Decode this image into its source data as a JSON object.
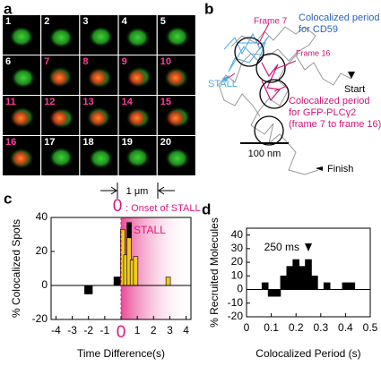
{
  "panel_a": {
    "label": "a",
    "scale_label": "1 μm",
    "frames": [
      {
        "label": "1",
        "color": "#ffffff"
      },
      {
        "label": "2",
        "color": "#ffffff"
      },
      {
        "label": "3",
        "color": "#ffffff"
      },
      {
        "label": "4",
        "color": "#ffffff"
      },
      {
        "label": "5",
        "color": "#ffffff"
      },
      {
        "label": "6",
        "color": "#ffffff"
      },
      {
        "label": "7",
        "color": "#ff3c9a"
      },
      {
        "label": "8",
        "color": "#ff3c9a"
      },
      {
        "label": "9",
        "color": "#ff3c9a"
      },
      {
        "label": "10",
        "color": "#ff3c9a"
      },
      {
        "label": "11",
        "color": "#ff3c9a"
      },
      {
        "label": "12",
        "color": "#ff3c9a"
      },
      {
        "label": "13",
        "color": "#ff3c9a"
      },
      {
        "label": "14",
        "color": "#ff3c9a"
      },
      {
        "label": "15",
        "color": "#ff3c9a"
      },
      {
        "label": "16",
        "color": "#ff3c9a"
      },
      {
        "label": "17",
        "color": "#ffffff"
      },
      {
        "label": "18",
        "color": "#ffffff"
      },
      {
        "label": "19",
        "color": "#ffffff"
      },
      {
        "label": "20",
        "color": "#ffffff"
      }
    ]
  },
  "panel_b": {
    "label": "b",
    "frame_7": "Frame 7",
    "frame_16": "Frame 16",
    "cd59_note": [
      "Colocalized period",
      "for CD59"
    ],
    "stall": "STALL",
    "start": "Start",
    "plc_note": [
      "Colocalized period",
      "for GFP-PLCγ2",
      "(frame 7 to frame 16)"
    ],
    "scale_label": "100 nm",
    "finish": "Finish"
  },
  "chart_data": [
    {
      "type": "bar",
      "panel_label": "c",
      "x_label": "Time Difference(s)",
      "y_label": "% Colocalized Spots",
      "annotation": {
        "text_0": "0",
        "text": ": Onset of STALL",
        "color": "#e0157f"
      },
      "xlim": [
        -4.3,
        4.3
      ],
      "xticks": [
        -4,
        -3,
        -2,
        -1,
        0,
        1,
        2,
        3,
        4
      ],
      "ylim": [
        -20,
        40
      ],
      "yticks": [
        -20,
        0,
        20,
        40
      ],
      "series": [
        {
          "color": "#000000",
          "x": [
            -2.1,
            -1.9,
            -0.3,
            -0.1,
            0.5
          ],
          "values": [
            -5,
            -5,
            5,
            5,
            37
          ]
        },
        {
          "name": "STALL",
          "color": "#f2c81e",
          "x": [
            0.1,
            0.3,
            0.5,
            0.7,
            0.9,
            2.9
          ],
          "values": [
            33,
            18,
            28,
            15,
            17,
            5
          ]
        }
      ]
    },
    {
      "type": "bar",
      "panel_label": "d",
      "x_label": "Colocalized Period (s)",
      "y_label": "% Recruited Molecules",
      "annotation": {
        "text": "250 ms",
        "x": 0.25
      },
      "xlim": [
        0,
        0.5
      ],
      "xticks": [
        0,
        0.1,
        0.2,
        0.3,
        0.4,
        0.5
      ],
      "ylim": [
        -20,
        45
      ],
      "yticks": [
        -20,
        -10,
        0,
        10,
        20,
        30,
        40
      ],
      "series": [
        {
          "color": "#000000",
          "x": [
            0.075,
            0.1,
            0.125,
            0.15,
            0.175,
            0.2,
            0.225,
            0.25,
            0.275,
            0.325,
            0.4,
            0.425
          ],
          "values": [
            5,
            -5,
            -5,
            10,
            17,
            22,
            17,
            22,
            10,
            5,
            5,
            5
          ]
        }
      ]
    }
  ]
}
